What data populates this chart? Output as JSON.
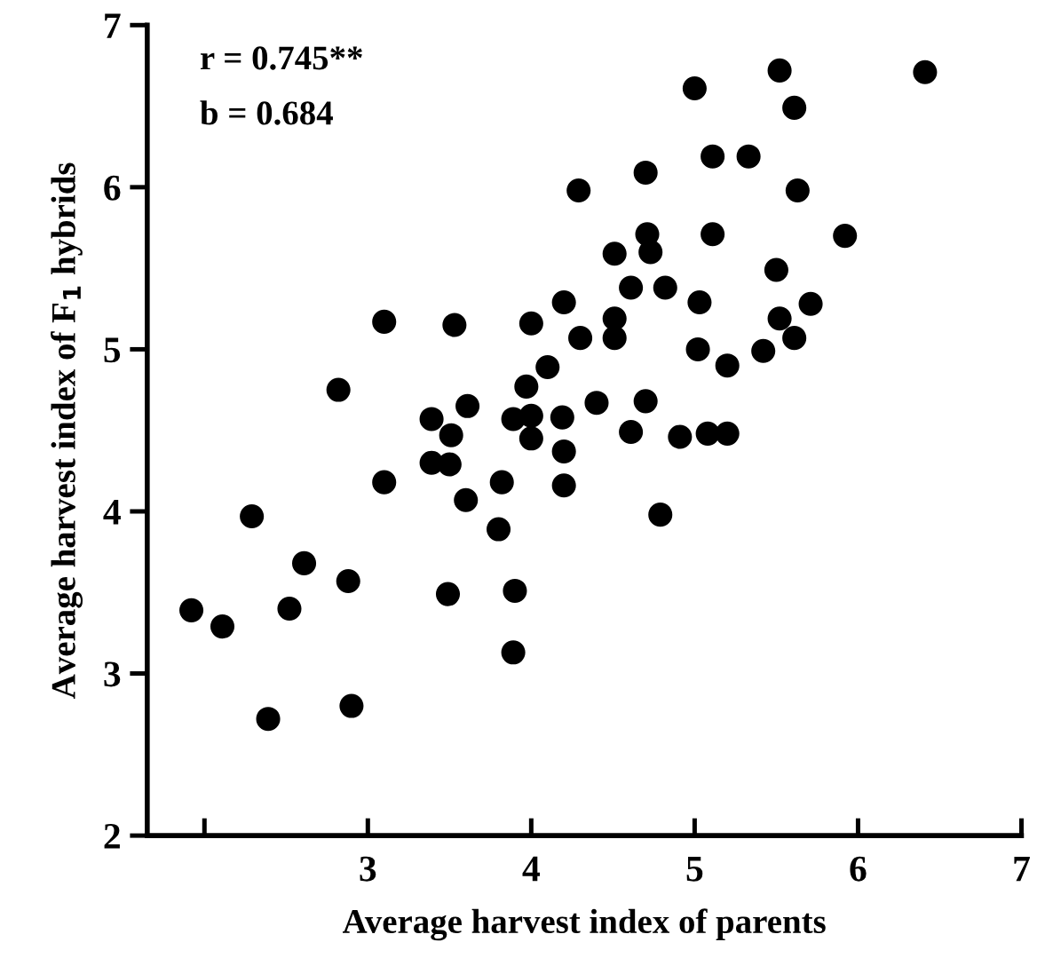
{
  "chart_data": {
    "type": "scatter",
    "xlabel": "Average harvest index of parents",
    "ylabel": "Average harvest index of F$_{1}$ hybrids",
    "annotations": [
      "r = 0.745**",
      "b = 0.684"
    ],
    "color": "#000000",
    "marker": "circle",
    "grid": false,
    "legend": false,
    "xlim": [
      1.65,
      7
    ],
    "ylim": [
      2,
      7
    ],
    "xticks": [
      {
        "value": 2,
        "label": null
      },
      3,
      4,
      5,
      6,
      7
    ],
    "yticks": [
      2,
      3,
      4,
      5,
      6,
      7
    ],
    "x": [
      1.92,
      2.11,
      2.39,
      2.29,
      2.61,
      2.52,
      2.88,
      2.9,
      3.1,
      3.39,
      3.39,
      3.5,
      3.51,
      3.61,
      3.6,
      3.49,
      3.82,
      3.8,
      3.9,
      3.89,
      3.89,
      2.82,
      3.1,
      3.53,
      4.0,
      3.97,
      4.0,
      4.0,
      4.19,
      4.2,
      4.2,
      4.4,
      4.7,
      4.61,
      4.91,
      5.08,
      5.2,
      4.79,
      5.52,
      6.41,
      5.0,
      5.61,
      5.11,
      5.33,
      4.7,
      4.29,
      5.63,
      4.71,
      5.11,
      5.92,
      4.51,
      4.73,
      5.5,
      4.61,
      4.82,
      4.2,
      5.03,
      5.71,
      4.3,
      4.51,
      4.51,
      5.52,
      5.61,
      5.02,
      5.2,
      5.42,
      4.1
    ],
    "values": [
      3.39,
      3.29,
      2.72,
      3.97,
      3.68,
      3.4,
      3.57,
      2.8,
      4.18,
      4.57,
      4.3,
      4.29,
      4.47,
      4.65,
      4.07,
      3.49,
      4.18,
      3.89,
      3.51,
      3.13,
      4.57,
      4.75,
      5.17,
      5.15,
      5.16,
      4.77,
      4.59,
      4.45,
      4.58,
      4.37,
      4.16,
      4.67,
      4.68,
      4.49,
      4.46,
      4.48,
      4.48,
      3.98,
      6.72,
      6.71,
      6.61,
      6.49,
      6.19,
      6.19,
      6.09,
      5.98,
      5.98,
      5.71,
      5.71,
      5.7,
      5.59,
      5.6,
      5.49,
      5.38,
      5.38,
      5.29,
      5.29,
      5.28,
      5.07,
      5.19,
      5.07,
      5.19,
      5.07,
      5.0,
      4.9,
      4.99,
      4.89
    ]
  }
}
